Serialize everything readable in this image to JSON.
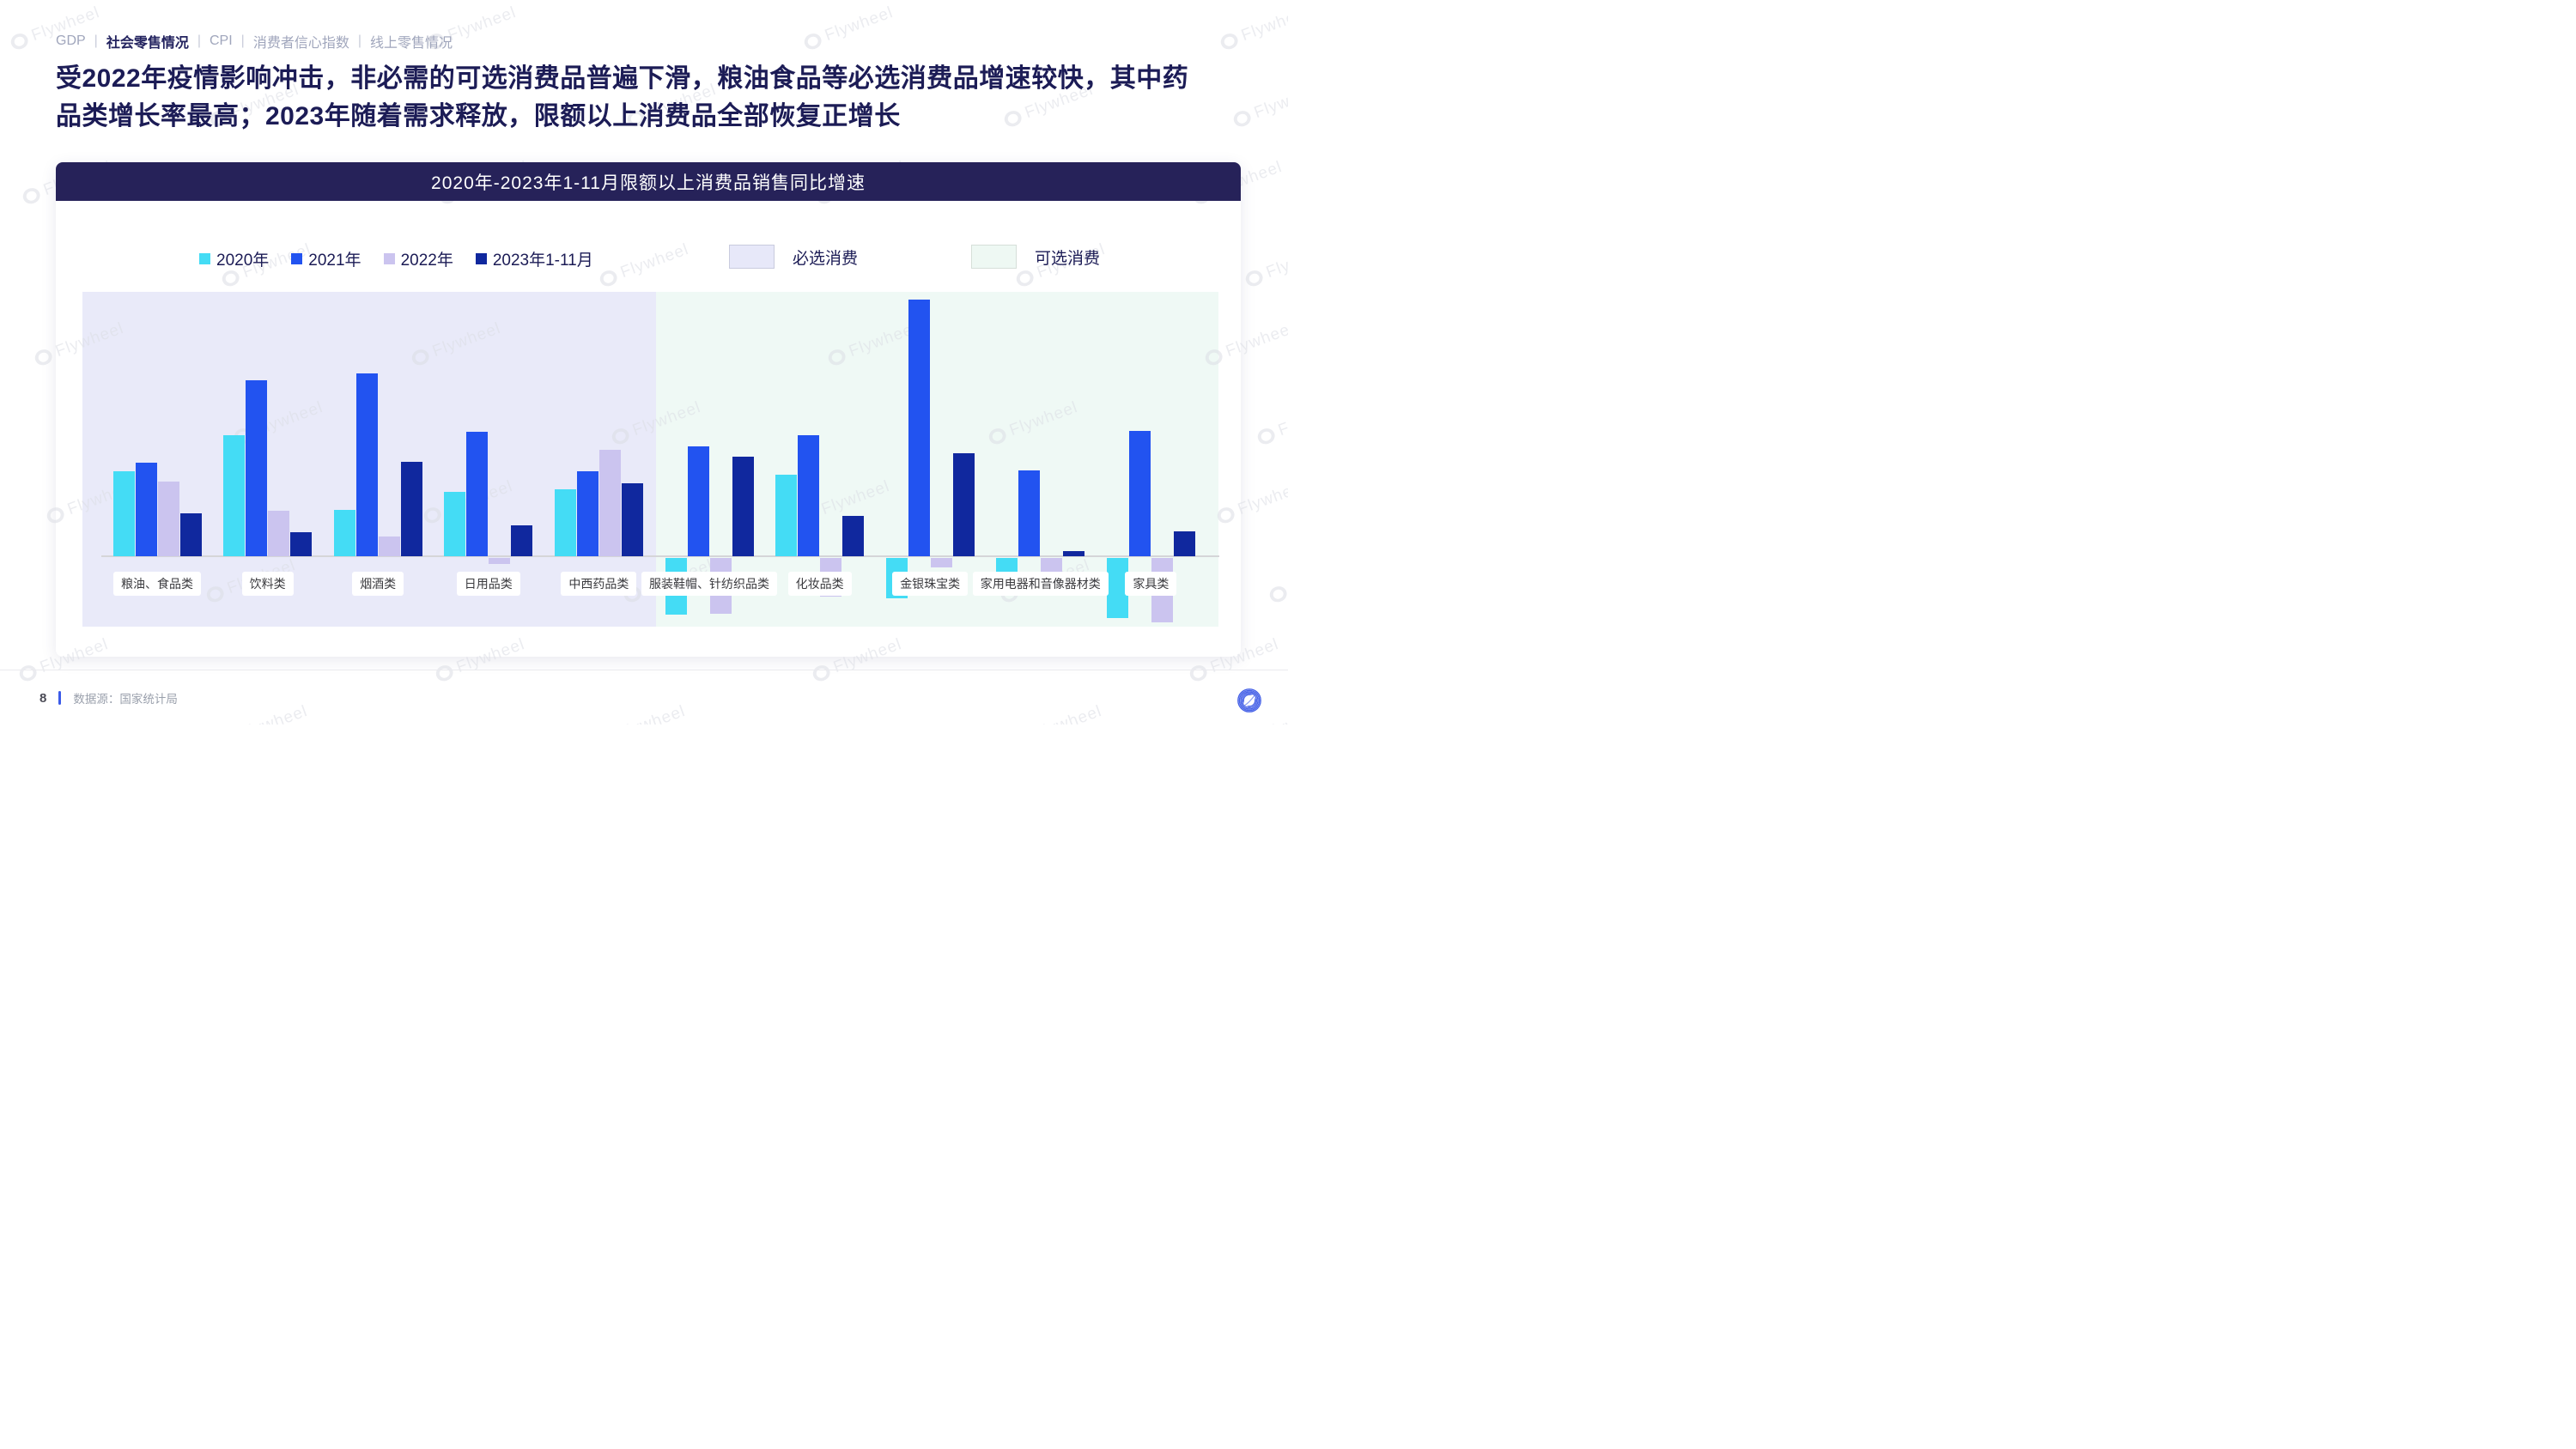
{
  "breadcrumb": {
    "separator": "|",
    "items": [
      {
        "label": "GDP",
        "active": false
      },
      {
        "label": "社会零售情况",
        "active": true
      },
      {
        "label": "CPI",
        "active": false
      },
      {
        "label": "消费者信心指数",
        "active": false
      },
      {
        "label": "线上零售情况",
        "active": false
      }
    ]
  },
  "title": "受2022年疫情影响冲击，非必需的可选消费品普遍下滑，粮油食品等必选消费品增速较快，其中药品类增长率最高；2023年随着需求释放，限额以上消费品全部恢复正增长",
  "chart": {
    "banner_title": "2020年-2023年1-11月限额以上消费品销售同比增速"
  },
  "chart_data": {
    "type": "bar",
    "title": "2020年-2023年1-11月限额以上消费品销售同比增速",
    "value_unit": "% 同比增速",
    "ylim": [
      -8,
      30
    ],
    "grid": false,
    "legend_position": "top",
    "series_names": [
      "2020年",
      "2021年",
      "2022年",
      "2023年1-11月"
    ],
    "series_colors": [
      "#44dcf5",
      "#2253f0",
      "#cbc4ef",
      "#10289e"
    ],
    "panels": [
      {
        "label": "必选消费",
        "fill": "#e9eaf9",
        "badge_fill": "#e7e8f9",
        "badge_border": "#c9cbde"
      },
      {
        "label": "可选消费",
        "fill": "#eff9f5",
        "badge_fill": "#eef8f3",
        "badge_border": "#d6dfd9"
      }
    ],
    "groups": [
      {
        "label": "粮油、食品类",
        "panel": "必选消费",
        "values": [
          9.9,
          10.8,
          8.7,
          5.0
        ]
      },
      {
        "label": "饮料类",
        "panel": "必选消费",
        "values": [
          14.0,
          20.4,
          5.3,
          2.8
        ]
      },
      {
        "label": "烟酒类",
        "panel": "必选消费",
        "values": [
          5.4,
          21.2,
          2.3,
          10.9
        ]
      },
      {
        "label": "日用品类",
        "panel": "必选消费",
        "values": [
          7.5,
          14.4,
          -0.7,
          3.6
        ]
      },
      {
        "label": "中西药品类",
        "panel": "必选消费",
        "values": [
          7.8,
          9.9,
          12.3,
          8.5
        ]
      },
      {
        "label": "服装鞋帽、针纺织品类",
        "panel": "可选消费",
        "values": [
          -6.6,
          12.7,
          -6.5,
          11.5
        ]
      },
      {
        "label": "化妆品类",
        "panel": "可选消费",
        "values": [
          9.5,
          14.0,
          -4.5,
          4.7
        ]
      },
      {
        "label": "金银珠宝类",
        "panel": "可选消费",
        "values": [
          -4.7,
          29.8,
          -1.1,
          11.9
        ]
      },
      {
        "label": "家用电器和音像器材类",
        "panel": "可选消费",
        "values": [
          -3.8,
          10.0,
          -3.9,
          0.6
        ]
      },
      {
        "label": "家具类",
        "panel": "可选消费",
        "values": [
          -7.0,
          14.5,
          -7.5,
          2.9
        ]
      }
    ]
  },
  "footer": {
    "page_number": "8",
    "source": "数据源：国家统计局"
  },
  "watermark": {
    "text": "Flywheel"
  },
  "colors": {
    "banner_bg": "#262259",
    "title_text": "#1c1c56",
    "baseline": "#d5d5d8",
    "accent_blue": "#3b5be8"
  }
}
